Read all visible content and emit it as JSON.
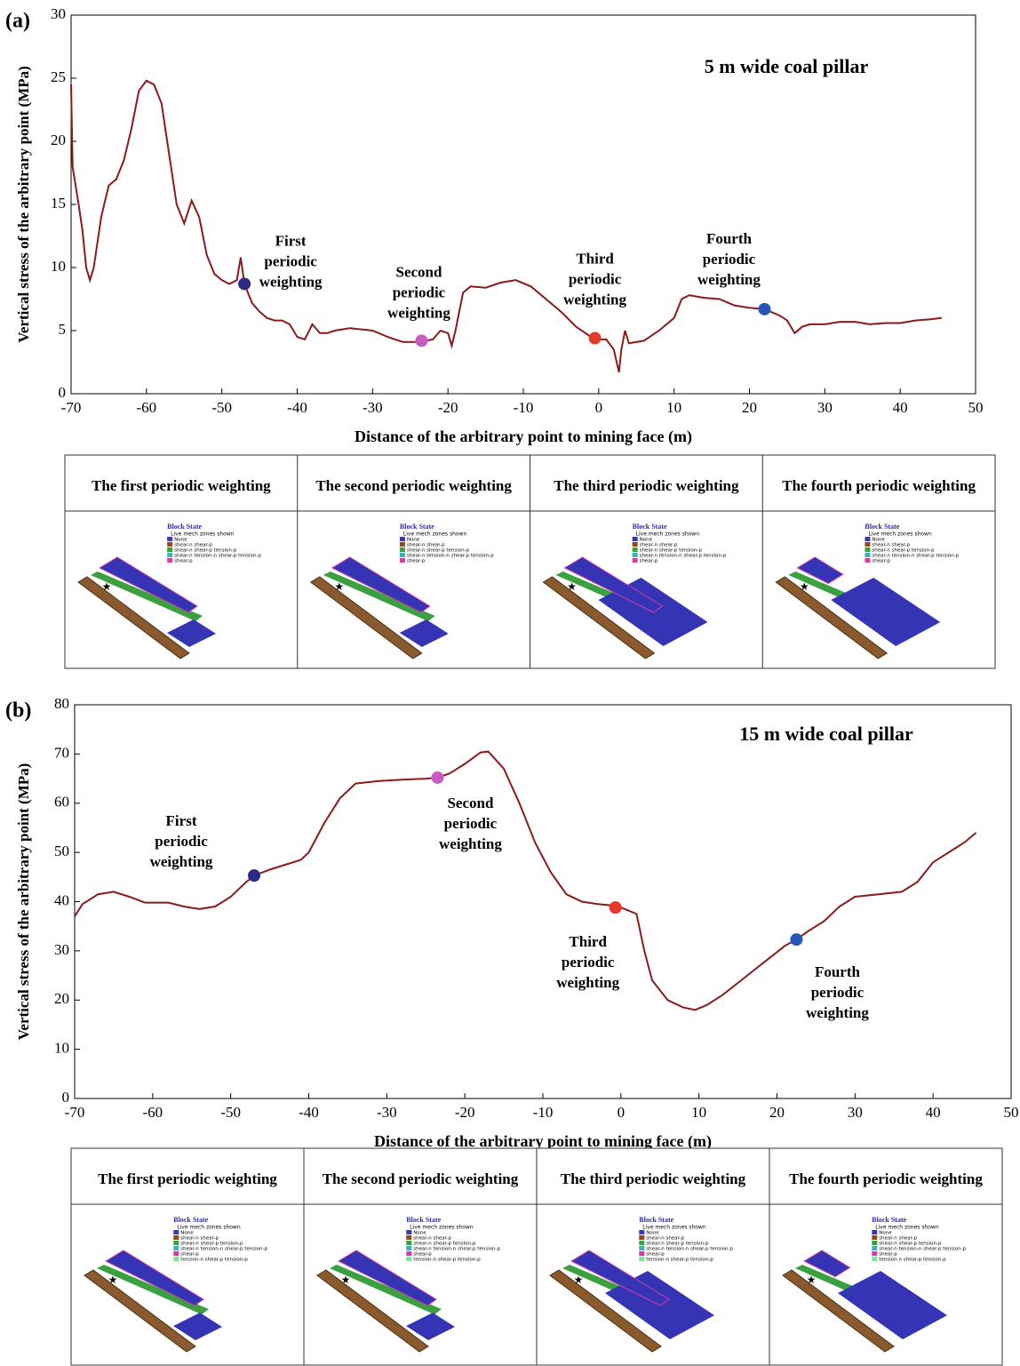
{
  "chart_data": [
    {
      "type": "line",
      "panel": "(a)",
      "annotation": "5 m wide coal pillar",
      "x_label": "Distance of the arbitrary point to mining face (m)",
      "y_label": "Vertical stress of the arbitrary point (MPa)",
      "xlim": [
        -70,
        50
      ],
      "ylim": [
        0,
        30
      ],
      "xticks": [
        -70,
        -60,
        -50,
        -40,
        -30,
        -20,
        -10,
        0,
        10,
        20,
        30,
        40,
        50
      ],
      "yticks": [
        0,
        5,
        10,
        15,
        20,
        25,
        30
      ],
      "series": [
        {
          "color": "#8b1a1a",
          "x": [
            -70,
            -69.8,
            -69,
            -68.5,
            -68,
            -67.5,
            -67,
            -66,
            -65,
            -64,
            -63,
            -62,
            -61,
            -60,
            -59,
            -58,
            -57,
            -56,
            -55,
            -54,
            -53,
            -52,
            -51,
            -50,
            -49,
            -48,
            -47.5,
            -47,
            -46,
            -45,
            -44,
            -43,
            -42,
            -41,
            -40,
            -39,
            -38,
            -37,
            -36,
            -35,
            -33,
            -30,
            -28,
            -26,
            -24,
            -22,
            -21,
            -20,
            -19.5,
            -19,
            -18,
            -17,
            -15,
            -13,
            -11,
            -9,
            -7,
            -5,
            -3,
            -1,
            0,
            1,
            2,
            2.7,
            3,
            3.5,
            4,
            6,
            8,
            10,
            11,
            12,
            14,
            16,
            18,
            20,
            22,
            24,
            25,
            26,
            27,
            28,
            30,
            32,
            34,
            36,
            38,
            40,
            42,
            44,
            45.5
          ],
          "values": [
            24.5,
            18,
            15,
            13,
            10,
            9,
            10,
            14,
            16.5,
            17,
            18.5,
            21,
            24,
            24.8,
            24.5,
            23,
            19,
            15,
            13.5,
            15.3,
            14,
            11,
            9.5,
            9,
            8.7,
            9,
            10.8,
            8.7,
            7.2,
            6.5,
            6,
            5.8,
            5.8,
            5.5,
            4.5,
            4.3,
            5.5,
            4.8,
            4.8,
            5,
            5.2,
            5,
            4.5,
            4.1,
            4.1,
            4.3,
            5,
            4.8,
            3.8,
            5,
            8,
            8.5,
            8.4,
            8.8,
            9,
            8.5,
            7.5,
            6.5,
            5.3,
            4.5,
            4.3,
            4.3,
            3.5,
            1.7,
            3.5,
            5,
            4,
            4.2,
            5,
            6,
            7.5,
            7.8,
            7.6,
            7.5,
            7,
            6.8,
            6.7,
            6.2,
            5.8,
            4.8,
            5.3,
            5.5,
            5.5,
            5.7,
            5.7,
            5.5,
            5.6,
            5.6,
            5.8,
            5.9,
            6.0
          ]
        }
      ],
      "points": [
        {
          "x": -47,
          "y": 8.7,
          "color": "#2c2a87",
          "label": [
            "First",
            "periodic",
            "weighting"
          ]
        },
        {
          "x": -23.5,
          "y": 4.2,
          "color": "#c95bc4",
          "label": [
            "Second",
            "periodic",
            "weighting"
          ]
        },
        {
          "x": -0.5,
          "y": 4.4,
          "color": "#e33a2a",
          "label": [
            "Third",
            "periodic",
            "weighting"
          ]
        },
        {
          "x": 22,
          "y": 6.7,
          "color": "#2855b8",
          "label": [
            "Fourth",
            "periodic",
            "weighting"
          ]
        }
      ]
    },
    {
      "type": "line",
      "panel": "(b)",
      "annotation": "15 m wide coal pillar",
      "x_label": "Distance of the arbitrary point to mining face (m)",
      "y_label": "Vertical stress of the arbitrary point (MPa)",
      "xlim": [
        -70,
        50
      ],
      "ylim": [
        0,
        80
      ],
      "xticks": [
        -70,
        -60,
        -50,
        -40,
        -30,
        -20,
        -10,
        0,
        10,
        20,
        30,
        40,
        50
      ],
      "yticks": [
        0,
        10,
        20,
        30,
        40,
        50,
        60,
        70,
        80
      ],
      "series": [
        {
          "color": "#8b1a1a",
          "x": [
            -70,
            -69,
            -67,
            -65,
            -63,
            -61,
            -58,
            -56,
            -54,
            -52,
            -50,
            -48,
            -47,
            -45,
            -43,
            -41,
            -40,
            -38,
            -36,
            -34,
            -31,
            -28,
            -25,
            -23.5,
            -22,
            -20,
            -18,
            -17,
            -15,
            -13,
            -11,
            -9,
            -7,
            -5,
            -3,
            -1,
            0,
            2,
            3,
            4,
            6,
            8,
            9.5,
            11,
            13,
            15,
            17,
            19,
            21,
            22.5,
            24,
            26,
            28,
            30,
            33,
            36,
            38,
            40,
            42,
            44,
            45.5
          ],
          "values": [
            37,
            39.5,
            41.5,
            42,
            41,
            39.8,
            39.8,
            39,
            38.5,
            39,
            41,
            44,
            45.3,
            46.5,
            47.5,
            48.5,
            50,
            56,
            61,
            64,
            64.5,
            64.8,
            65,
            65.2,
            66,
            68,
            70.3,
            70.5,
            67,
            60,
            52,
            46,
            41.5,
            40,
            39.5,
            39.2,
            38.8,
            37.5,
            30,
            24,
            20,
            18.5,
            18,
            19,
            21,
            23.5,
            26,
            28.5,
            31,
            32.3,
            34,
            36,
            39,
            41,
            41.5,
            42,
            44,
            48,
            50,
            52,
            54
          ]
        }
      ],
      "points": [
        {
          "x": -47,
          "y": 45.3,
          "color": "#2c2a87",
          "label": [
            "First",
            "periodic",
            "weighting"
          ]
        },
        {
          "x": -23.5,
          "y": 65.2,
          "color": "#c95bc4",
          "label": [
            "Second",
            "periodic",
            "weighting"
          ]
        },
        {
          "x": -0.7,
          "y": 38.8,
          "color": "#e33a2a",
          "label": [
            "Third",
            "periodic",
            "weighting"
          ]
        },
        {
          "x": 22.5,
          "y": 32.3,
          "color": "#2855b8",
          "label": [
            "Fourth",
            "periodic",
            "weighting"
          ]
        }
      ]
    }
  ],
  "tables": [
    {
      "headers": [
        "The first periodic weighting",
        "The second periodic weighting",
        "The third periodic weighting",
        "The fourth periodic weighting"
      ],
      "legend_title": "Block State",
      "legend_subtitle": "Live mech zones shown",
      "legend": [
        "None",
        "shear-n shear-p",
        "shear-n shear-p tension-p",
        "shear-n tension-n shear-p tension-p",
        "shear-p"
      ]
    },
    {
      "headers": [
        "The first periodic weighting",
        "The second periodic weighting",
        "The third periodic weighting",
        "The fourth periodic weighting"
      ],
      "legend_title": "Block State",
      "legend_subtitle": "Live mech zones shown",
      "legend": [
        "None",
        "shear-n shear-p",
        "shear-n shear-p tension-p",
        "shear-n tension-n shear-p tension-p",
        "shear-p",
        "tension-n shear-p tension-p"
      ]
    }
  ]
}
